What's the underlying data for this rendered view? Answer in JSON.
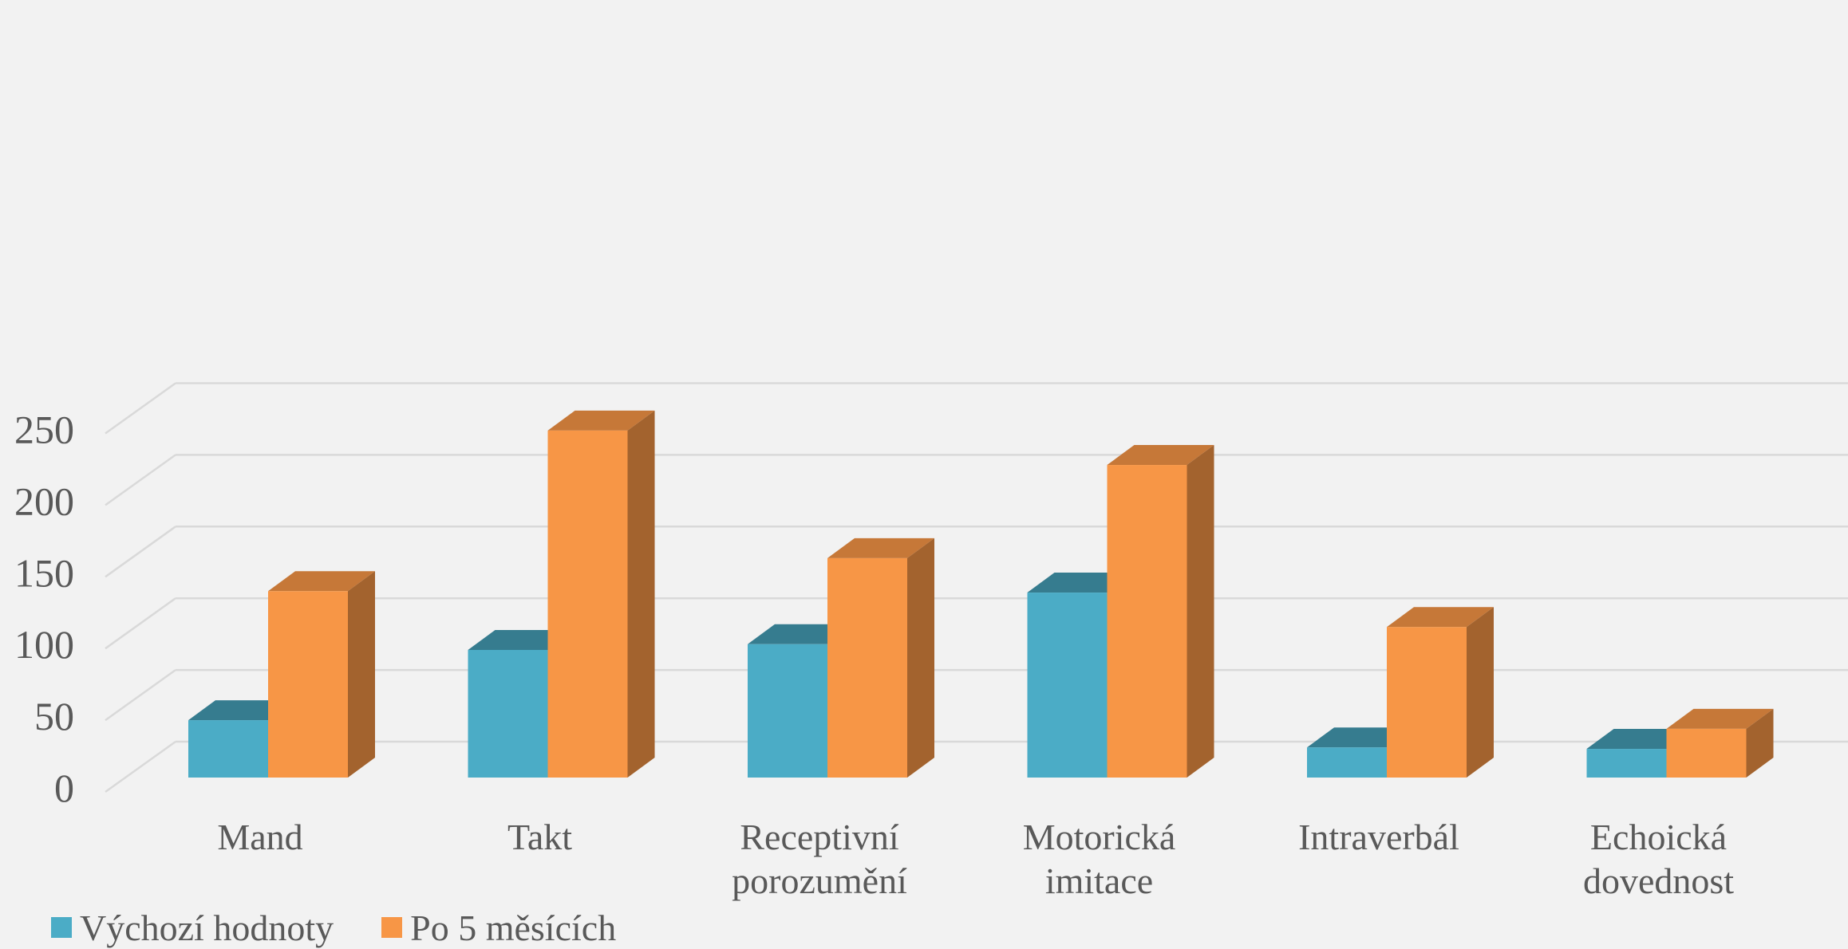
{
  "chart_data": {
    "type": "bar",
    "title": "",
    "xlabel": "",
    "ylabel": "",
    "ylim": [
      0,
      250
    ],
    "yticks": [
      0,
      50,
      100,
      150,
      200,
      250
    ],
    "grid": true,
    "legend_position": "bottom-left",
    "categories": [
      [
        "Mand"
      ],
      [
        "Takt"
      ],
      [
        "Receptivní",
        "porozumění"
      ],
      [
        "Motorická",
        "imitace"
      ],
      [
        "Intraverbál"
      ],
      [
        "Echoická",
        "dovednost"
      ]
    ],
    "series": [
      {
        "name": "Výchozí hodnoty",
        "values": [
          40,
          89,
          93,
          129,
          21,
          20
        ],
        "color": "#4bacc6"
      },
      {
        "name": "Po 5 měsících",
        "values": [
          130,
          242,
          153,
          218,
          105,
          34
        ],
        "color": "#f79646"
      }
    ]
  }
}
